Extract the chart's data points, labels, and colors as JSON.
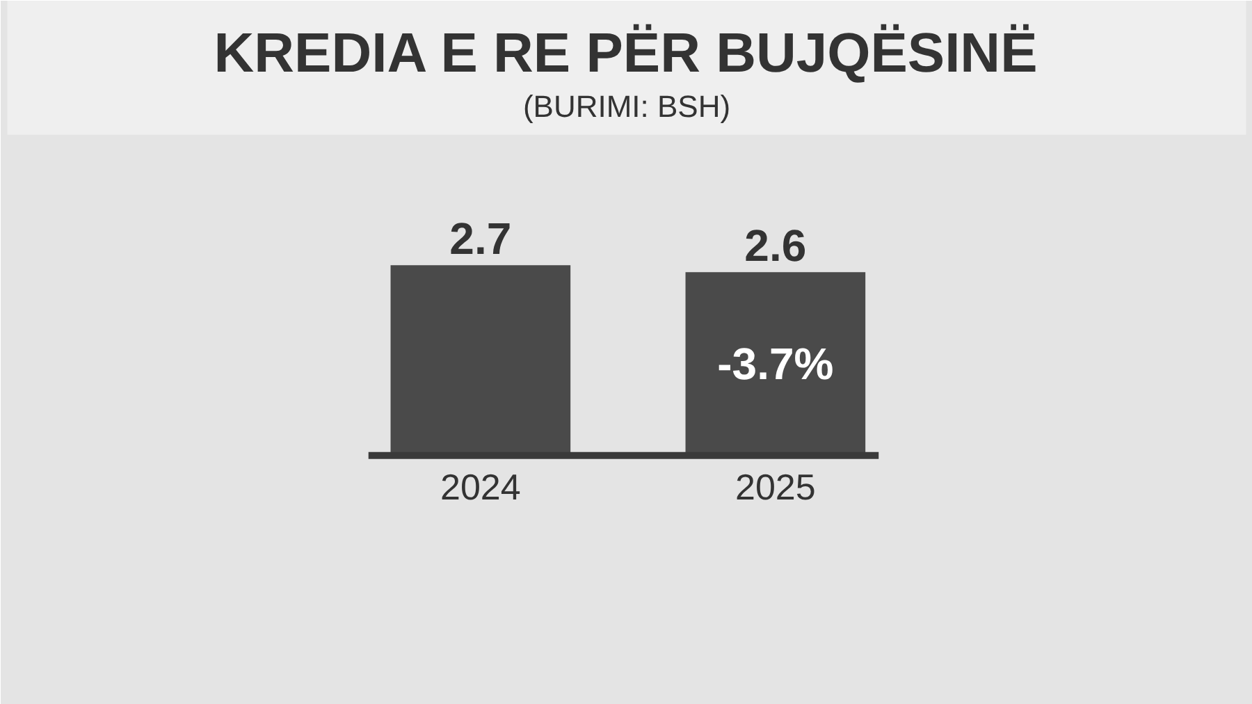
{
  "chart_data": {
    "type": "bar",
    "title": "KREDIA E RE PËR BUJQËSINË",
    "subtitle": "(BURIMI: BSH)",
    "categories": [
      "2024",
      "2025"
    ],
    "values": [
      2.7,
      2.6
    ],
    "color": "#4a4a4a",
    "data_labels": true,
    "annotations": [
      "-3.7%"
    ]
  }
}
